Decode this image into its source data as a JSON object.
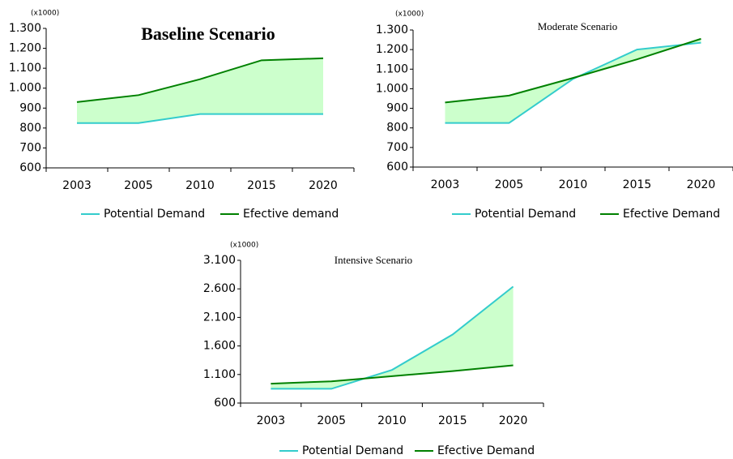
{
  "chart_data": [
    {
      "type": "line",
      "title": "Baseline Scenario",
      "unit_label": "(x1000)",
      "categories": [
        "2003",
        "2005",
        "2010",
        "2015",
        "2020"
      ],
      "series": [
        {
          "name": "Potential Demand",
          "color": "#33cccc",
          "values": [
            825,
            825,
            870,
            870,
            870
          ]
        },
        {
          "name": "Efective demand",
          "color": "#008000",
          "values": [
            930,
            965,
            1045,
            1140,
            1150
          ]
        }
      ],
      "fill_between": "#ccffcc",
      "ylim": [
        600,
        1300
      ],
      "yticks": [
        600,
        700,
        800,
        900,
        {
          "value": 1000,
          "label": "1.000"
        },
        {
          "value": 1100,
          "label": "1.100"
        },
        {
          "value": 1200,
          "label": "1.200"
        },
        {
          "value": 1300,
          "label": "1.300"
        }
      ],
      "grid": false
    },
    {
      "type": "line",
      "title": "Moderate Scenario",
      "unit_label": "(x1000)",
      "categories": [
        "2003",
        "2005",
        "2010",
        "2015",
        "2020"
      ],
      "series": [
        {
          "name": "Potential Demand",
          "color": "#33cccc",
          "values": [
            825,
            825,
            1050,
            1200,
            1235
          ]
        },
        {
          "name": "Efective Demand",
          "color": "#008000",
          "values": [
            930,
            965,
            1055,
            1150,
            1255
          ]
        }
      ],
      "fill_between": "#ccffcc",
      "ylim": [
        600,
        1300
      ],
      "yticks": [
        600,
        700,
        800,
        900,
        {
          "value": 1000,
          "label": "1.000"
        },
        {
          "value": 1100,
          "label": "1.100"
        },
        {
          "value": 1200,
          "label": "1.200"
        },
        {
          "value": 1300,
          "label": "1.300"
        }
      ],
      "grid": false
    },
    {
      "type": "line",
      "title": "Intensive Scenario",
      "unit_label": "(x1000)",
      "categories": [
        "2003",
        "2005",
        "2010",
        "2015",
        "2020"
      ],
      "series": [
        {
          "name": "Potential Demand",
          "color": "#33cccc",
          "values": [
            850,
            850,
            1180,
            1800,
            2640
          ]
        },
        {
          "name": "Efective Demand",
          "color": "#008000",
          "values": [
            940,
            980,
            1070,
            1160,
            1260
          ]
        }
      ],
      "fill_between": "#ccffcc",
      "ylim": [
        600,
        3100
      ],
      "yticks": [
        600,
        {
          "value": 1100,
          "label": "1.100"
        },
        {
          "value": 1600,
          "label": "1.600"
        },
        {
          "value": 2100,
          "label": "2.100"
        },
        {
          "value": 2600,
          "label": "2.600"
        },
        {
          "value": 3100,
          "label": "3.100"
        }
      ],
      "grid": false
    }
  ]
}
